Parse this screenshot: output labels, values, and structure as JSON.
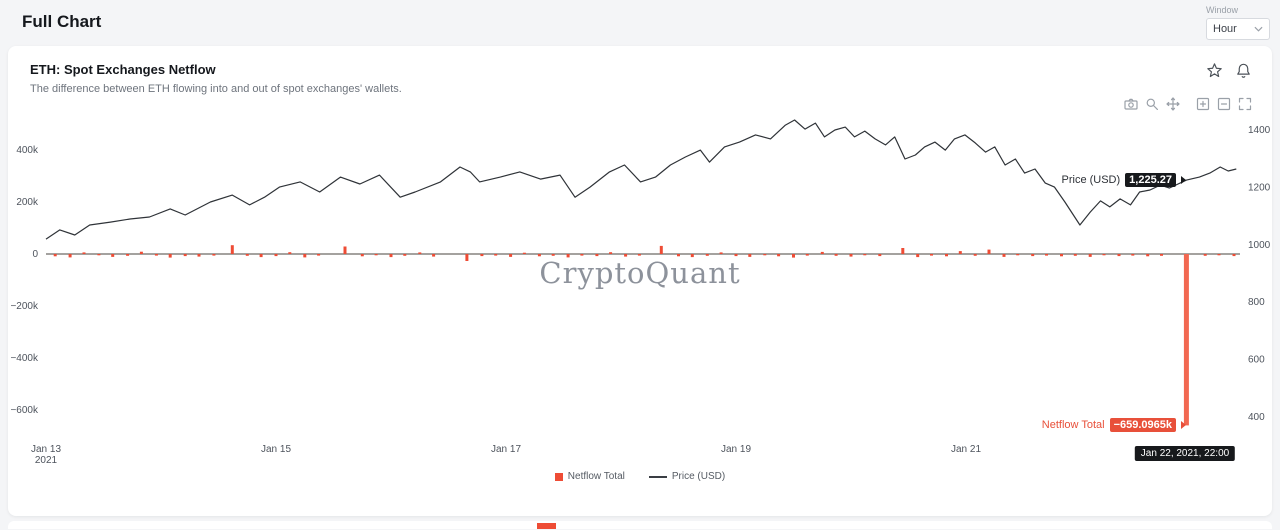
{
  "page": {
    "title": "Full Chart",
    "window_label": "Window",
    "window_value": "Hour"
  },
  "card": {
    "title": "ETH: Spot Exchanges Netflow",
    "subtitle": "The difference between ETH flowing into and out of spot exchanges' wallets.",
    "action_icons": [
      "star-icon",
      "bell-icon"
    ],
    "modebar_icons": [
      "camera-icon",
      "zoom-icon",
      "pan-icon",
      "zoom-in-icon",
      "zoom-out-icon",
      "autoscale-icon"
    ]
  },
  "watermark": "CryptoQuant",
  "tooltips": {
    "price_label": "Price (USD)",
    "price_value": "1,225.27",
    "netflow_label": "Netflow Total",
    "netflow_value": "−659.0965k",
    "date_value": "Jan 22, 2021, 22:00"
  },
  "legend": [
    {
      "type": "bar",
      "color": "#ee4c35",
      "label": "Netflow Total"
    },
    {
      "type": "line",
      "color": "#3a3e44",
      "label": "Price (USD)"
    }
  ],
  "chart_data": {
    "type": "bar+line",
    "title": "ETH: Spot Exchanges Netflow",
    "x_unit": "days since Jan 13, 2021 00:00 (hourly data)",
    "x_range": [
      0,
      10.38
    ],
    "x_ticks": [
      {
        "d": 0,
        "label": "Jan 13",
        "sub": "2021"
      },
      {
        "d": 2,
        "label": "Jan 15"
      },
      {
        "d": 4,
        "label": "Jan 17"
      },
      {
        "d": 6,
        "label": "Jan 19"
      },
      {
        "d": 8,
        "label": "Jan 21"
      }
    ],
    "grid": false,
    "legend_position": "bottom-center",
    "y_left": {
      "title": "Netflow Total (thousand ETH)",
      "range_k": [
        -692,
        535
      ],
      "ticks": [
        {
          "v": 400,
          "label": "400k"
        },
        {
          "v": 200,
          "label": "200k"
        },
        {
          "v": 0,
          "label": "0"
        },
        {
          "v": -200,
          "label": "−200k"
        },
        {
          "v": -400,
          "label": "−400k"
        },
        {
          "v": -600,
          "label": "−600k"
        }
      ]
    },
    "y_right": {
      "title": "Price (USD)",
      "range": [
        341,
        1452
      ],
      "ticks": [
        {
          "v": 1400,
          "label": "1400"
        },
        {
          "v": 1200,
          "label": "1200"
        },
        {
          "v": 1000,
          "label": "1000"
        },
        {
          "v": 800,
          "label": "800"
        },
        {
          "v": 600,
          "label": "600"
        },
        {
          "v": 400,
          "label": "400"
        }
      ]
    },
    "series": [
      {
        "name": "Netflow Total",
        "type": "bar",
        "axis": "left",
        "unit": "thousand ETH",
        "color": "#ee4c35",
        "highlight_color": "#f26851",
        "points": [
          [
            0.08,
            -9
          ],
          [
            0.21,
            -13
          ],
          [
            0.33,
            6
          ],
          [
            0.46,
            -5
          ],
          [
            0.58,
            -11
          ],
          [
            0.71,
            -7
          ],
          [
            0.83,
            9
          ],
          [
            0.96,
            -6
          ],
          [
            1.08,
            -14
          ],
          [
            1.21,
            -8
          ],
          [
            1.33,
            -10
          ],
          [
            1.46,
            -6
          ],
          [
            1.62,
            34
          ],
          [
            1.75,
            -7
          ],
          [
            1.87,
            -12
          ],
          [
            2.0,
            -8
          ],
          [
            2.12,
            7
          ],
          [
            2.25,
            -13
          ],
          [
            2.37,
            -6
          ],
          [
            2.6,
            29
          ],
          [
            2.75,
            -9
          ],
          [
            2.87,
            -5
          ],
          [
            3.0,
            -12
          ],
          [
            3.12,
            -7
          ],
          [
            3.25,
            6
          ],
          [
            3.37,
            -10
          ],
          [
            3.66,
            -27
          ],
          [
            3.79,
            -8
          ],
          [
            3.91,
            -6
          ],
          [
            4.04,
            -11
          ],
          [
            4.16,
            5
          ],
          [
            4.29,
            -9
          ],
          [
            4.41,
            -7
          ],
          [
            4.54,
            -13
          ],
          [
            4.66,
            -6
          ],
          [
            4.79,
            -8
          ],
          [
            4.91,
            7
          ],
          [
            5.04,
            -10
          ],
          [
            5.16,
            -6
          ],
          [
            5.35,
            31
          ],
          [
            5.5,
            -9
          ],
          [
            5.62,
            -12
          ],
          [
            5.75,
            -7
          ],
          [
            5.87,
            6
          ],
          [
            6.0,
            -8
          ],
          [
            6.12,
            -11
          ],
          [
            6.25,
            -5
          ],
          [
            6.37,
            -9
          ],
          [
            6.5,
            -14
          ],
          [
            6.62,
            -6
          ],
          [
            6.75,
            8
          ],
          [
            6.87,
            -7
          ],
          [
            7.0,
            -10
          ],
          [
            7.12,
            -5
          ],
          [
            7.25,
            -8
          ],
          [
            7.45,
            23
          ],
          [
            7.58,
            -12
          ],
          [
            7.7,
            -6
          ],
          [
            7.83,
            -9
          ],
          [
            7.95,
            11
          ],
          [
            8.08,
            -7
          ],
          [
            8.2,
            17
          ],
          [
            8.33,
            -11
          ],
          [
            8.45,
            -5
          ],
          [
            8.58,
            -8
          ],
          [
            8.7,
            -6
          ],
          [
            8.83,
            -9
          ],
          [
            8.95,
            -7
          ],
          [
            9.08,
            -11
          ],
          [
            9.2,
            -5
          ],
          [
            9.33,
            -8
          ],
          [
            9.45,
            -6
          ],
          [
            9.58,
            -9
          ],
          [
            9.7,
            -7
          ],
          [
            9.9167,
            -659.0965
          ],
          [
            10.08,
            -7
          ],
          [
            10.2,
            -5
          ],
          [
            10.33,
            -8
          ]
        ]
      },
      {
        "name": "Price (USD)",
        "type": "line",
        "axis": "right",
        "unit": "USD",
        "color": "#2f3338",
        "points": [
          [
            0,
            1020
          ],
          [
            0.12,
            1052
          ],
          [
            0.25,
            1034
          ],
          [
            0.38,
            1069
          ],
          [
            0.56,
            1079
          ],
          [
            0.73,
            1090
          ],
          [
            0.9,
            1097
          ],
          [
            1.08,
            1125
          ],
          [
            1.21,
            1104
          ],
          [
            1.43,
            1149
          ],
          [
            1.62,
            1173
          ],
          [
            1.77,
            1139
          ],
          [
            1.9,
            1166
          ],
          [
            2.03,
            1201
          ],
          [
            2.21,
            1219
          ],
          [
            2.38,
            1184
          ],
          [
            2.56,
            1236
          ],
          [
            2.73,
            1212
          ],
          [
            2.9,
            1243
          ],
          [
            3.08,
            1166
          ],
          [
            3.21,
            1184
          ],
          [
            3.43,
            1219
          ],
          [
            3.6,
            1271
          ],
          [
            3.69,
            1254
          ],
          [
            3.77,
            1219
          ],
          [
            3.95,
            1236
          ],
          [
            4.12,
            1254
          ],
          [
            4.3,
            1229
          ],
          [
            4.47,
            1243
          ],
          [
            4.6,
            1166
          ],
          [
            4.73,
            1201
          ],
          [
            4.9,
            1254
          ],
          [
            5.03,
            1278
          ],
          [
            5.17,
            1219
          ],
          [
            5.3,
            1236
          ],
          [
            5.43,
            1278
          ],
          [
            5.56,
            1306
          ],
          [
            5.69,
            1330
          ],
          [
            5.77,
            1288
          ],
          [
            5.9,
            1341
          ],
          [
            6.03,
            1358
          ],
          [
            6.17,
            1383
          ],
          [
            6.3,
            1369
          ],
          [
            6.43,
            1417
          ],
          [
            6.51,
            1435
          ],
          [
            6.6,
            1403
          ],
          [
            6.69,
            1424
          ],
          [
            6.77,
            1376
          ],
          [
            6.86,
            1400
          ],
          [
            6.95,
            1410
          ],
          [
            7.03,
            1376
          ],
          [
            7.12,
            1396
          ],
          [
            7.21,
            1369
          ],
          [
            7.3,
            1348
          ],
          [
            7.38,
            1376
          ],
          [
            7.47,
            1299
          ],
          [
            7.56,
            1313
          ],
          [
            7.64,
            1341
          ],
          [
            7.73,
            1358
          ],
          [
            7.82,
            1330
          ],
          [
            7.9,
            1369
          ],
          [
            7.99,
            1383
          ],
          [
            8.08,
            1355
          ],
          [
            8.17,
            1323
          ],
          [
            8.25,
            1341
          ],
          [
            8.34,
            1278
          ],
          [
            8.43,
            1299
          ],
          [
            8.51,
            1250
          ],
          [
            8.6,
            1264
          ],
          [
            8.69,
            1215
          ],
          [
            8.77,
            1201
          ],
          [
            8.86,
            1149
          ],
          [
            8.99,
            1069
          ],
          [
            9.08,
            1114
          ],
          [
            9.17,
            1153
          ],
          [
            9.25,
            1132
          ],
          [
            9.34,
            1160
          ],
          [
            9.43,
            1139
          ],
          [
            9.51,
            1184
          ],
          [
            9.6,
            1191
          ],
          [
            9.69,
            1208
          ],
          [
            9.77,
            1198
          ],
          [
            9.917,
            1225.27
          ],
          [
            10.03,
            1236
          ],
          [
            10.12,
            1250
          ],
          [
            10.21,
            1271
          ],
          [
            10.28,
            1257
          ],
          [
            10.35,
            1264
          ]
        ]
      }
    ],
    "annotations": {
      "cursor_point": {
        "date": "Jan 22, 2021, 22:00",
        "netflow_k": -659.0965,
        "price_usd": 1225.27
      }
    }
  }
}
